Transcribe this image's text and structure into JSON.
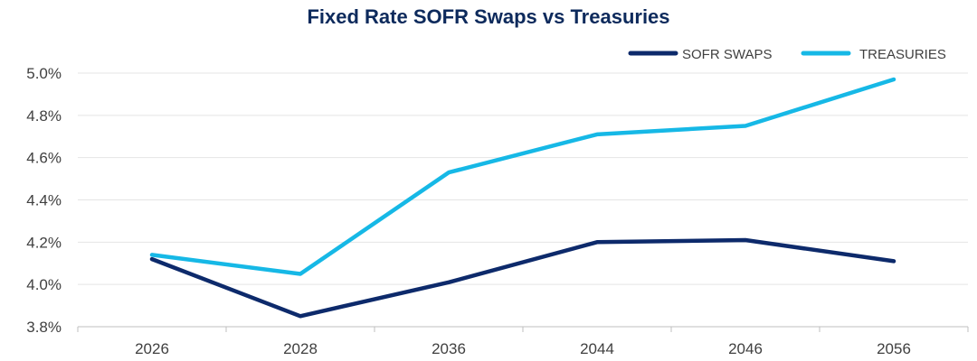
{
  "chart_data": {
    "type": "line",
    "title": "Fixed Rate SOFR Swaps vs Treasuries",
    "xlabel": "",
    "ylabel": "",
    "categories": [
      "2026",
      "2028",
      "2036",
      "2044",
      "2046",
      "2056"
    ],
    "ylim": [
      3.8,
      5.0
    ],
    "yticks": [
      3.8,
      4.0,
      4.2,
      4.4,
      4.6,
      4.8,
      5.0
    ],
    "ytick_labels": [
      "3.8%",
      "4.0%",
      "4.2%",
      "4.4%",
      "4.6%",
      "4.8%",
      "5.0%"
    ],
    "grid": true,
    "legend_position": "top-right",
    "series": [
      {
        "name": "SOFR SWAPS",
        "color": "#0d2a6b",
        "values": [
          4.12,
          3.85,
          4.01,
          4.2,
          4.21,
          4.11
        ]
      },
      {
        "name": "TREASURIES",
        "color": "#16b8e6",
        "values": [
          4.14,
          4.05,
          4.53,
          4.71,
          4.75,
          4.97
        ]
      }
    ]
  }
}
